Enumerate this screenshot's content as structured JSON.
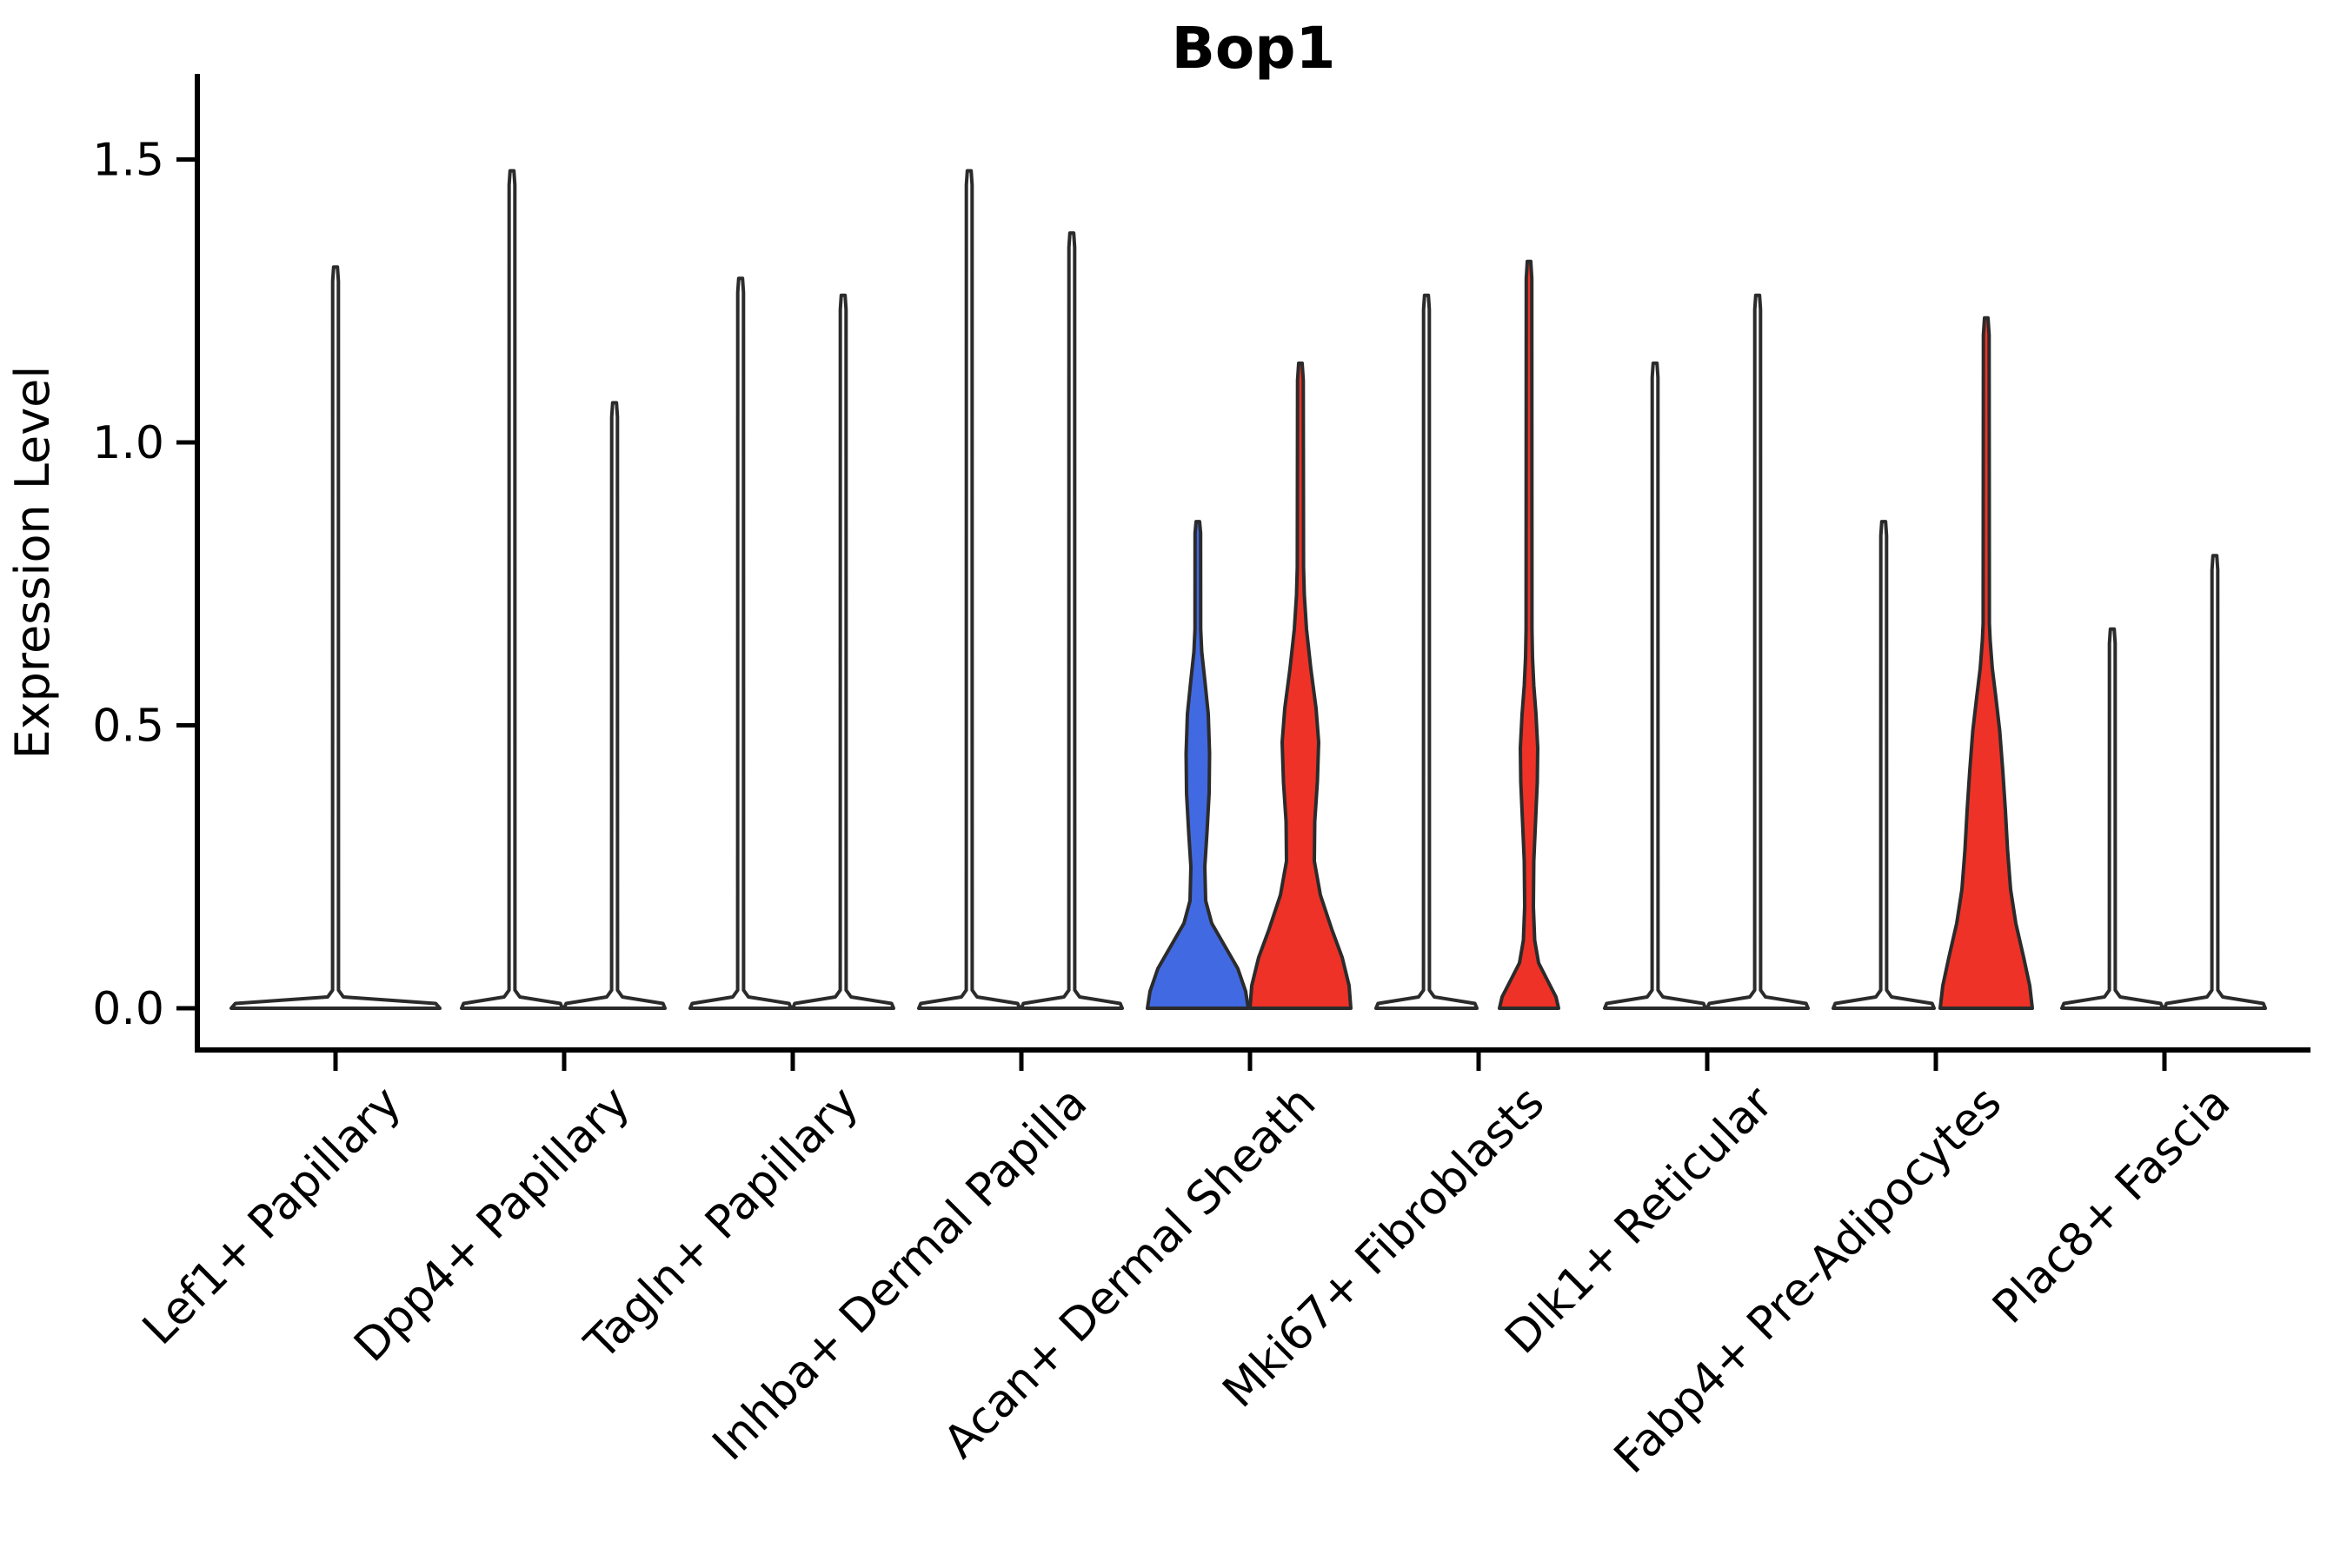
{
  "chart_data": {
    "type": "violin",
    "title": "Bop1",
    "ylabel": "Expression Level",
    "xlabel": "",
    "y_ticks": [
      0.0,
      0.5,
      1.0,
      1.5
    ],
    "y_tick_labels": [
      "0.0",
      "0.5",
      "1.0",
      "1.5"
    ],
    "ylim": [
      -0.074,
      1.651
    ],
    "grid": false,
    "legend": "none",
    "colors": {
      "default": "#ffffff",
      "blue": "#4169e1",
      "red": "#ee3227",
      "outline": "#2b2b2b",
      "axis": "#000000"
    },
    "categories": [
      "Lef1+ Papillary",
      "Dpp4+ Papillary",
      "Tagln+ Papillary",
      "Inhba+ Dermal Papilla",
      "Acan+ Dermal Sheath",
      "Mki67+ Fibroblasts",
      "Dlk1+ Reticular",
      "Fabp4+ Pre-Adipocytes",
      "Plac8+ Fascia"
    ],
    "violins": [
      {
        "category": "Lef1+ Papillary",
        "slot": "center",
        "fill": "default",
        "max_expression": 1.31,
        "shape": "spike",
        "halfwidth": 120
      },
      {
        "category": "Dpp4+ Papillary",
        "slot": "left",
        "fill": "default",
        "max_expression": 1.48,
        "shape": "spike",
        "halfwidth": 58
      },
      {
        "category": "Dpp4+ Papillary",
        "slot": "right",
        "fill": "default",
        "max_expression": 1.07,
        "shape": "spike",
        "halfwidth": 58
      },
      {
        "category": "Tagln+ Papillary",
        "slot": "left",
        "fill": "default",
        "max_expression": 1.29,
        "shape": "spike",
        "halfwidth": 58
      },
      {
        "category": "Tagln+ Papillary",
        "slot": "right",
        "fill": "default",
        "max_expression": 1.26,
        "shape": "spike",
        "halfwidth": 58
      },
      {
        "category": "Inhba+ Dermal Papilla",
        "slot": "left",
        "fill": "default",
        "max_expression": 1.48,
        "shape": "spike",
        "halfwidth": 58
      },
      {
        "category": "Inhba+ Dermal Papilla",
        "slot": "right",
        "fill": "default",
        "max_expression": 1.37,
        "shape": "spike",
        "halfwidth": 58
      },
      {
        "category": "Acan+ Dermal Sheath",
        "slot": "left",
        "fill": "blue",
        "max_expression": 0.86,
        "shape": "profile",
        "halfwidth": 58,
        "profile": [
          [
            0,
            58
          ],
          [
            0.03,
            55
          ],
          [
            0.07,
            46
          ],
          [
            0.11,
            31
          ],
          [
            0.15,
            16
          ],
          [
            0.19,
            9
          ],
          [
            0.25,
            8
          ],
          [
            0.31,
            10.5
          ],
          [
            0.38,
            13
          ],
          [
            0.45,
            13.5
          ],
          [
            0.52,
            12
          ],
          [
            0.58,
            8
          ],
          [
            0.63,
            4.5
          ],
          [
            0.67,
            3.3
          ],
          [
            0.84,
            3.2
          ],
          [
            0.86,
            2
          ]
        ]
      },
      {
        "category": "Acan+ Dermal Sheath",
        "slot": "right",
        "fill": "red",
        "max_expression": 1.14,
        "shape": "profile",
        "halfwidth": 58,
        "profile": [
          [
            0,
            58
          ],
          [
            0.04,
            56
          ],
          [
            0.09,
            48
          ],
          [
            0.14,
            36
          ],
          [
            0.2,
            23
          ],
          [
            0.26,
            16
          ],
          [
            0.33,
            16.5
          ],
          [
            0.4,
            19.5
          ],
          [
            0.47,
            21
          ],
          [
            0.53,
            18
          ],
          [
            0.6,
            12
          ],
          [
            0.67,
            7
          ],
          [
            0.73,
            4.5
          ],
          [
            0.78,
            3.6
          ],
          [
            1.11,
            3.3
          ],
          [
            1.14,
            2
          ]
        ]
      },
      {
        "category": "Mki67+ Fibroblasts",
        "slot": "left",
        "fill": "default",
        "max_expression": 1.26,
        "shape": "spike",
        "halfwidth": 58
      },
      {
        "category": "Mki67+ Fibroblasts",
        "slot": "right",
        "fill": "red",
        "max_expression": 1.32,
        "shape": "profile",
        "halfwidth": 58,
        "profile": [
          [
            0,
            34
          ],
          [
            0.02,
            31
          ],
          [
            0.05,
            21
          ],
          [
            0.08,
            11
          ],
          [
            0.12,
            6.5
          ],
          [
            0.18,
            5
          ],
          [
            0.26,
            5.5
          ],
          [
            0.33,
            7.5
          ],
          [
            0.4,
            9.5
          ],
          [
            0.46,
            10
          ],
          [
            0.52,
            8
          ],
          [
            0.57,
            5.5
          ],
          [
            0.62,
            4
          ],
          [
            0.67,
            3.4
          ],
          [
            1.29,
            3.2
          ],
          [
            1.32,
            2
          ]
        ]
      },
      {
        "category": "Dlk1+ Reticular",
        "slot": "left",
        "fill": "default",
        "max_expression": 1.14,
        "shape": "spike",
        "halfwidth": 58
      },
      {
        "category": "Dlk1+ Reticular",
        "slot": "right",
        "fill": "default",
        "max_expression": 1.26,
        "shape": "spike",
        "halfwidth": 58
      },
      {
        "category": "Fabp4+ Pre-Adipocytes",
        "slot": "left",
        "fill": "default",
        "max_expression": 0.86,
        "shape": "spike",
        "halfwidth": 58
      },
      {
        "category": "Fabp4+ Pre-Adipocytes",
        "slot": "right",
        "fill": "red",
        "max_expression": 1.22,
        "shape": "profile",
        "halfwidth": 58,
        "profile": [
          [
            0,
            53
          ],
          [
            0.04,
            50
          ],
          [
            0.09,
            43
          ],
          [
            0.15,
            34
          ],
          [
            0.21,
            28
          ],
          [
            0.28,
            24.5
          ],
          [
            0.35,
            22
          ],
          [
            0.42,
            19
          ],
          [
            0.49,
            15.5
          ],
          [
            0.55,
            11
          ],
          [
            0.6,
            7
          ],
          [
            0.65,
            4.5
          ],
          [
            0.68,
            3.6
          ],
          [
            1.19,
            3.3
          ],
          [
            1.22,
            2
          ]
        ]
      },
      {
        "category": "Plac8+ Fascia",
        "slot": "left",
        "fill": "default",
        "max_expression": 0.67,
        "shape": "spike",
        "halfwidth": 58
      },
      {
        "category": "Plac8+ Fascia",
        "slot": "right",
        "fill": "default",
        "max_expression": 0.8,
        "shape": "spike",
        "halfwidth": 58
      }
    ]
  }
}
